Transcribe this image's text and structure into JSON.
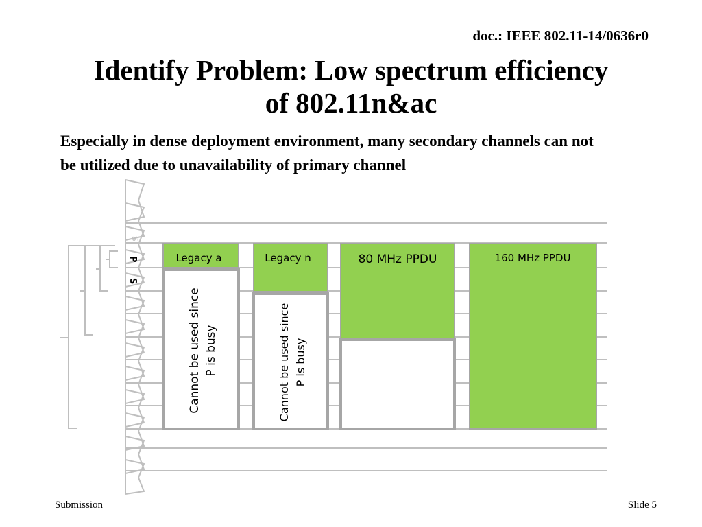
{
  "header": {
    "doc_id": "doc.: IEEE 802.11-14/0636r0",
    "title_line1": "Identify Problem: Low spectrum efficiency",
    "title_line2": "of 802.11n&ac",
    "subtitle": "Especially in dense deployment environment, many secondary channels can not be utilized due to  unavailability of primary channel"
  },
  "diagram": {
    "channel_labels": {
      "s_top": "S",
      "p": "P",
      "s": "S"
    },
    "blocks": {
      "legacy_a": "Legacy a",
      "legacy_n": "Legacy n",
      "ppdu_80": "80 MHz PPDU",
      "ppdu_160": "160 MHz PPDU"
    },
    "busy_note_1_line1": "Cannot be used since",
    "busy_note_1_line2": "P is busy",
    "busy_note_2_line1": "Cannot be used since",
    "busy_note_2_line2": "P is busy",
    "colors": {
      "green": "#92d050",
      "gray": "#a6a6a6",
      "line": "#bfbfbf"
    }
  },
  "footer": {
    "left": "Submission",
    "right": "Slide 5"
  }
}
